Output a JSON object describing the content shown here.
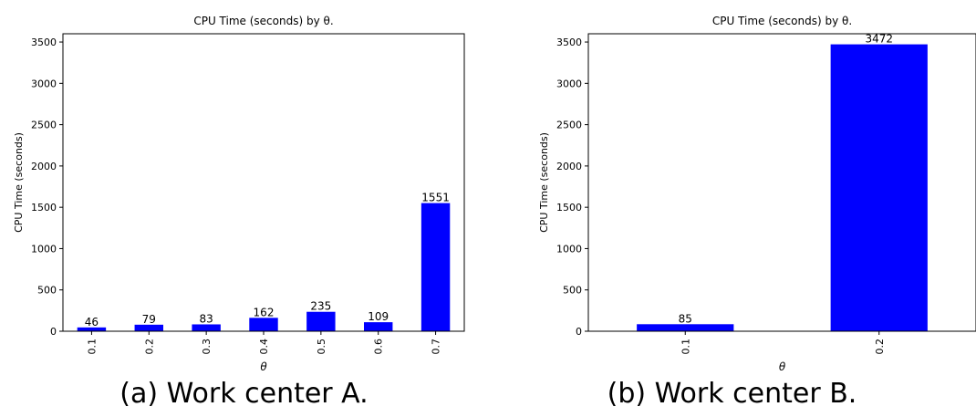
{
  "chart_data": [
    {
      "type": "bar",
      "title": "CPU Time (seconds) by θ.",
      "xlabel": "θ",
      "ylabel": "CPU Time (seconds)",
      "categories": [
        "0.1",
        "0.2",
        "0.3",
        "0.4",
        "0.5",
        "0.6",
        "0.7"
      ],
      "values": [
        46,
        79,
        83,
        162,
        235,
        109,
        1551
      ],
      "data_labels": [
        "46",
        "79",
        "83",
        "162",
        "235",
        "109",
        "1551"
      ],
      "ylim": [
        0,
        3600
      ],
      "yticks": [
        0,
        500,
        1000,
        1500,
        2000,
        2500,
        3000,
        3500
      ],
      "ytick_labels": [
        "0",
        "500",
        "1000",
        "1500",
        "2000",
        "2500",
        "3000",
        "3500"
      ],
      "grid": false,
      "bar_color": "#0000ff",
      "caption": "(a) Work center A."
    },
    {
      "type": "bar",
      "title": "CPU Time (seconds) by θ.",
      "xlabel": "θ",
      "ylabel": "CPU Time (seconds)",
      "categories": [
        "0.1",
        "0.2"
      ],
      "values": [
        85,
        3472
      ],
      "data_labels": [
        "85",
        "3472"
      ],
      "ylim": [
        0,
        3600
      ],
      "yticks": [
        0,
        500,
        1000,
        1500,
        2000,
        2500,
        3000,
        3500
      ],
      "ytick_labels": [
        "0",
        "500",
        "1000",
        "1500",
        "2000",
        "2500",
        "3000",
        "3500"
      ],
      "grid": false,
      "bar_color": "#0000ff",
      "caption": "(b) Work center B."
    }
  ]
}
